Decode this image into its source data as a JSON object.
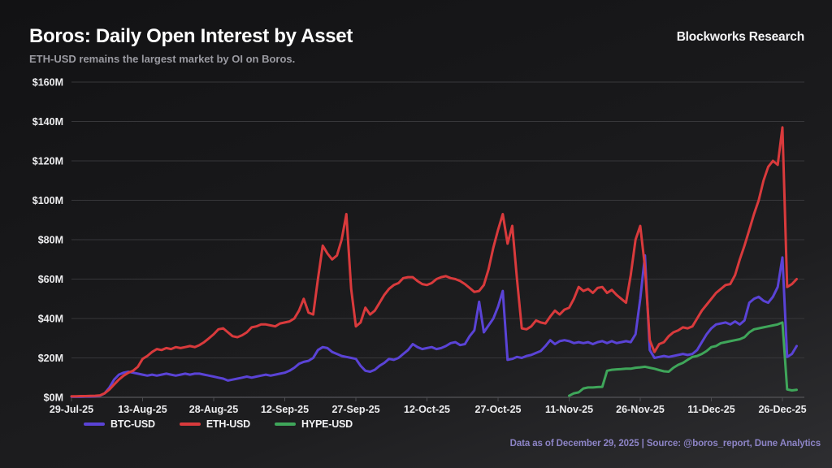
{
  "header": {
    "title": "Boros: Daily Open Interest by Asset",
    "subtitle": "ETH-USD remains the largest market by OI on Boros.",
    "brand": "Blockworks Research"
  },
  "footer": {
    "text": "Data as of December 29, 2025 | Source: @boros_report, Dune Analytics"
  },
  "colors": {
    "background_top": "#131315",
    "background_bottom": "#2e2e31",
    "grid": "#37373a",
    "axis": "#4c4c50",
    "tick_label": "#ededef",
    "subtitle_text": "#9a9aa1",
    "footer_text": "#8d84c6",
    "btc": "#5a43d6",
    "eth": "#d93a3c",
    "hype": "#3fa65a"
  },
  "chart_data": {
    "type": "line",
    "title": "Boros: Daily Open Interest by Asset",
    "subtitle": "ETH-USD remains the largest market by OI on Boros.",
    "xlabel": "",
    "ylabel": "",
    "unit": "USD millions",
    "ylim": [
      0,
      160
    ],
    "x_max_day": 153,
    "grid": "horizontal",
    "legend_position": "bottom-left",
    "x_ticks": [
      {
        "day": 0,
        "label": "29-Jul-25"
      },
      {
        "day": 15,
        "label": "13-Aug-25"
      },
      {
        "day": 30,
        "label": "28-Aug-25"
      },
      {
        "day": 45,
        "label": "12-Sep-25"
      },
      {
        "day": 60,
        "label": "27-Sep-25"
      },
      {
        "day": 75,
        "label": "12-Oct-25"
      },
      {
        "day": 90,
        "label": "27-Oct-25"
      },
      {
        "day": 105,
        "label": "11-Nov-25"
      },
      {
        "day": 120,
        "label": "26-Nov-25"
      },
      {
        "day": 135,
        "label": "11-Dec-25"
      },
      {
        "day": 150,
        "label": "26-Dec-25"
      }
    ],
    "y_ticks": [
      {
        "value": 0,
        "label": "$0M"
      },
      {
        "value": 20,
        "label": "$20M"
      },
      {
        "value": 40,
        "label": "$40M"
      },
      {
        "value": 60,
        "label": "$60M"
      },
      {
        "value": 80,
        "label": "$80M"
      },
      {
        "value": 100,
        "label": "$100M"
      },
      {
        "value": 120,
        "label": "$120M"
      },
      {
        "value": 140,
        "label": "$140M"
      },
      {
        "value": 160,
        "label": "$160M"
      }
    ],
    "series": [
      {
        "name": "BTC-USD",
        "color": "#5a43d6",
        "z": 2,
        "start_day": 0,
        "values": [
          0.3,
          0.3,
          0.3,
          0.4,
          0.4,
          0.5,
          0.8,
          2,
          5,
          9,
          11.5,
          12.5,
          13,
          12.5,
          12,
          11.5,
          11,
          11.5,
          11,
          11.5,
          12,
          11.5,
          11,
          11.5,
          12,
          11.5,
          12,
          12,
          11.5,
          11,
          10.5,
          10,
          9.5,
          8.5,
          9,
          9.5,
          10,
          10.5,
          10,
          10.5,
          11,
          11.5,
          11,
          11.5,
          12,
          12.5,
          13.5,
          15,
          17,
          18,
          18.5,
          20,
          24,
          25.5,
          25,
          23,
          22,
          21,
          20.5,
          20,
          19.5,
          16,
          13.5,
          13,
          14,
          16,
          17.5,
          19.5,
          19,
          20,
          22,
          24,
          27,
          25.5,
          24.5,
          25,
          25.5,
          24.5,
          25,
          26,
          27.5,
          28,
          26.5,
          27,
          31,
          34,
          48.5,
          33,
          36.5,
          40,
          46,
          54,
          19,
          19.5,
          20.5,
          20,
          21,
          21.5,
          22.5,
          23.5,
          26,
          29,
          27,
          28.5,
          29,
          28.5,
          27.5,
          28,
          27.5,
          28,
          27,
          28,
          28.5,
          27.5,
          28.5,
          27.5,
          28,
          28.5,
          28,
          32,
          50,
          72,
          24,
          20,
          20.5,
          21,
          20.5,
          21,
          21.5,
          22,
          21.5,
          22,
          24,
          28,
          32,
          35,
          37,
          37.5,
          38,
          37,
          38.5,
          37,
          39,
          48,
          50,
          51,
          49,
          48,
          51,
          56,
          71,
          20.5,
          22,
          26
        ]
      },
      {
        "name": "ETH-USD",
        "color": "#d93a3c",
        "z": 3,
        "start_day": 0,
        "values": [
          0.5,
          0.5,
          0.6,
          0.6,
          0.7,
          0.8,
          1,
          2,
          4,
          6.5,
          9,
          11,
          12.5,
          13.5,
          15.5,
          19.5,
          21,
          23,
          24.5,
          24,
          25,
          24.5,
          25.5,
          25,
          25.5,
          26,
          25.5,
          26.5,
          28,
          30,
          32,
          34.5,
          35,
          33,
          31,
          30.5,
          31.5,
          33,
          35.5,
          36,
          37,
          37,
          36.5,
          36,
          37.5,
          38,
          38.5,
          40,
          44,
          50,
          43,
          42,
          60,
          77,
          73,
          70,
          72,
          80,
          93,
          55,
          36,
          38,
          45.5,
          42,
          44,
          48,
          52,
          55,
          57,
          58,
          60.5,
          61,
          61,
          59,
          57.5,
          57,
          58,
          60,
          61,
          61.5,
          60.5,
          60,
          59,
          57.5,
          55.5,
          53.5,
          54,
          57,
          65,
          76,
          85,
          93,
          78,
          87,
          60,
          35,
          34.5,
          36,
          39,
          38,
          37.5,
          41,
          44,
          42,
          44.5,
          45.5,
          50,
          56,
          54,
          55,
          53,
          55.5,
          56,
          53,
          54.5,
          52,
          50,
          48,
          62,
          80,
          87,
          66,
          29,
          23,
          27,
          28,
          31,
          33,
          34,
          35.5,
          35,
          36,
          40,
          44,
          47,
          50,
          53,
          55,
          57,
          57.5,
          62,
          70,
          77,
          85,
          93,
          100,
          110,
          117,
          120,
          118,
          137,
          56,
          57.5,
          60
        ]
      },
      {
        "name": "HYPE-USD",
        "color": "#3fa65a",
        "z": 1,
        "start_day": 105,
        "values": [
          0.8,
          2,
          2.5,
          4.5,
          5,
          5,
          5.2,
          5.3,
          13.5,
          14,
          14.2,
          14.3,
          14.5,
          14.5,
          15,
          15.2,
          15.5,
          15,
          14.5,
          13.8,
          13.2,
          13,
          15,
          16.5,
          17.5,
          19,
          20.5,
          21,
          22,
          23.5,
          25.5,
          26,
          27.5,
          28,
          28.5,
          29,
          29.5,
          30.5,
          33,
          34.5,
          35,
          35.5,
          36,
          36.5,
          37,
          38,
          4,
          3.5,
          3.8
        ]
      }
    ]
  }
}
